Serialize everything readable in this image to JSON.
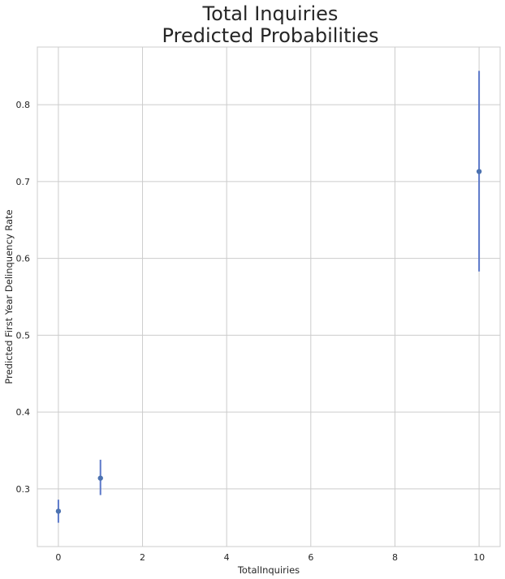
{
  "chart_data": {
    "type": "scatter",
    "title_lines": [
      "Total Inquiries",
      "Predicted Probabilities"
    ],
    "xlabel": "TotalInquiries",
    "ylabel": "Predicted First Year Delinquency Rate",
    "xlim": [
      -0.5,
      10.5
    ],
    "ylim": [
      0.225,
      0.875
    ],
    "xticks": [
      0,
      2,
      4,
      6,
      8,
      10
    ],
    "xtick_labels": [
      "0",
      "2",
      "4",
      "6",
      "8",
      "10"
    ],
    "yticks": [
      0.3,
      0.4,
      0.5,
      0.6,
      0.7,
      0.8
    ],
    "ytick_labels": [
      "0.3",
      "0.4",
      "0.5",
      "0.6",
      "0.7",
      "0.8"
    ],
    "grid": true,
    "marker_color": "#4c72b0",
    "errorbar_color": "#5b78c9",
    "points": [
      {
        "x": 0,
        "y": 0.271,
        "lower": 0.256,
        "upper": 0.286
      },
      {
        "x": 1,
        "y": 0.314,
        "lower": 0.292,
        "upper": 0.338
      },
      {
        "x": 10,
        "y": 0.713,
        "lower": 0.583,
        "upper": 0.844
      }
    ]
  }
}
